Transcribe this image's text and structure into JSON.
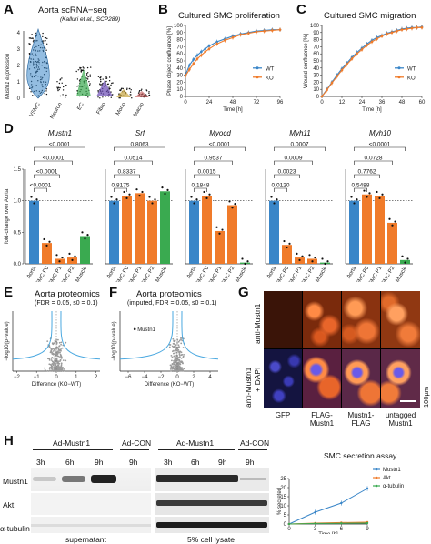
{
  "panelA": {
    "letter": "A",
    "title": "Aorta scRNA−seq",
    "subtitle": "(Kalluri et al., SCP289)",
    "ylabel": "Mustn1 expression",
    "yticks": [
      "4",
      "3",
      "2",
      "1",
      "0"
    ],
    "categories": [
      "VSMC",
      "Neuron",
      "EC",
      "Fibro",
      "Mono",
      "Macro"
    ]
  },
  "panelB": {
    "letter": "B",
    "title": "Cultured SMC proliferation",
    "ylabel": "Phase object confluence [%]",
    "xlabel": "Time [h]"
  },
  "panelC": {
    "letter": "C",
    "title": "Cultured SMC migration",
    "ylabel": "Wound confluence [%]",
    "xlabel": "Time [h]"
  },
  "panelD": {
    "letter": "D",
    "ylabel": "fold-change over Aorta",
    "groups": [
      {
        "gene": "Mustn1",
        "pvals": [
          "<0.0001",
          "<0.0001",
          "<0.0001",
          "<0.0001"
        ]
      },
      {
        "gene": "Srf",
        "pvals": [
          "0.8063",
          "0.0514",
          "0.8337",
          "0.8175"
        ]
      },
      {
        "gene": "Myocd",
        "pvals": [
          "<0.0001",
          "0.9537",
          "0.0015",
          "0.1848"
        ]
      },
      {
        "gene": "Myh11",
        "pvals": [
          "0.0007",
          "0.0009",
          "0.0023",
          "0.0120"
        ]
      },
      {
        "gene": "Myh10",
        "pvals": [
          "<0.0001",
          "0.0728",
          "0.7762",
          "0.5488"
        ]
      }
    ],
    "xcats": [
      "Aorta",
      "SMC P0",
      "SMC P1",
      "SMC P2",
      "Sk Muscle"
    ]
  },
  "panelE": {
    "letter": "E",
    "title": "Aorta proteomics",
    "subtitle": "(FDR = 0.05, s0 = 0.1)",
    "ylabel": "−log10(p−value)",
    "xlabel": "Difference (KO−WT)",
    "xticks": [
      "−2",
      "−1",
      "0",
      "1",
      "2"
    ]
  },
  "panelF": {
    "letter": "F",
    "title": "Aorta proteomics",
    "subtitle": "(imputed, FDR = 0.05, s0 = 0.1)",
    "ylabel": "−log10(p−value)",
    "xlabel": "Difference (KO−WT)",
    "xticks": [
      "−6",
      "−4",
      "−2",
      "0",
      "2",
      "4"
    ],
    "annotation": "Mustn1"
  },
  "panelG": {
    "letter": "G",
    "row1": "anti-Mustn1",
    "row2a": "anti-Mustn1",
    "row2b": "+ DAPI",
    "scalebar": "100µm",
    "cols": [
      "GFP",
      "FLAG-\nMustn1",
      "Mustn1-\nFLAG",
      "untagged\nMustn1"
    ]
  },
  "panelH": {
    "letter": "H",
    "leftGroupA": "Ad-Mustn1",
    "leftGroupB": "Ad-CON",
    "rightGroupA": "Ad-Mustn1",
    "rightGroupB": "Ad-CON",
    "times": [
      "3h",
      "6h",
      "9h",
      "9h"
    ],
    "rows": [
      "Mustn1",
      "Akt",
      "α-tubulin"
    ],
    "leftFooter": "supernatant",
    "rightFooter": "5% cell lysate",
    "assay": {
      "title": "SMC secretion assay",
      "ylabel": "% secreted",
      "xlabel": "Time [h]",
      "legend": [
        "Mustn1",
        "Akt",
        "α-tubulin"
      ]
    }
  },
  "chart_data": [
    {
      "type": "line",
      "title": "Cultured SMC proliferation",
      "xlabel": "Time [h]",
      "ylabel": "Phase object confluence [%]",
      "xlim": [
        0,
        96
      ],
      "ylim": [
        0,
        100
      ],
      "xticks": [
        0,
        24,
        48,
        72,
        96
      ],
      "yticks": [
        0,
        10,
        20,
        30,
        40,
        50,
        60,
        70,
        80,
        90,
        100
      ],
      "colors": {
        "WT": "#3a86c8",
        "KO": "#f07b2a"
      },
      "series": [
        {
          "name": "WT",
          "x": [
            0,
            4,
            8,
            12,
            16,
            20,
            24,
            32,
            40,
            48,
            56,
            64,
            72,
            80,
            88,
            96
          ],
          "values": [
            30,
            44,
            52,
            58,
            63,
            67,
            71,
            77,
            81,
            85,
            88,
            90,
            92,
            93,
            94,
            94
          ]
        },
        {
          "name": "KO",
          "x": [
            0,
            4,
            8,
            12,
            16,
            20,
            24,
            32,
            40,
            48,
            56,
            64,
            72,
            80,
            88,
            96
          ],
          "values": [
            29,
            38,
            46,
            53,
            58,
            63,
            67,
            74,
            79,
            83,
            87,
            89,
            91,
            92,
            93,
            94
          ]
        }
      ]
    },
    {
      "type": "line",
      "title": "Cultured SMC migration",
      "xlabel": "Time [h]",
      "ylabel": "Wound confluence [%]",
      "xlim": [
        0,
        60
      ],
      "ylim": [
        0,
        100
      ],
      "xticks": [
        0,
        12,
        24,
        36,
        48,
        60
      ],
      "yticks": [
        0,
        10,
        20,
        30,
        40,
        50,
        60,
        70,
        80,
        90,
        100
      ],
      "colors": {
        "WT": "#3a86c8",
        "KO": "#f07b2a"
      },
      "series": [
        {
          "name": "WT",
          "x": [
            0,
            3,
            6,
            9,
            12,
            15,
            18,
            21,
            24,
            27,
            30,
            33,
            36,
            39,
            42,
            45,
            48,
            51,
            54,
            57,
            60
          ],
          "values": [
            0,
            10,
            20,
            30,
            39,
            47,
            55,
            62,
            68,
            74,
            79,
            83,
            86,
            89,
            91,
            93,
            95,
            96,
            97,
            97,
            98
          ]
        },
        {
          "name": "KO",
          "x": [
            0,
            3,
            6,
            9,
            12,
            15,
            18,
            21,
            24,
            27,
            30,
            33,
            36,
            39,
            42,
            45,
            48,
            51,
            54,
            57,
            60
          ],
          "values": [
            0,
            9,
            19,
            28,
            37,
            45,
            53,
            60,
            66,
            72,
            77,
            81,
            85,
            88,
            90,
            92,
            94,
            95,
            96,
            97,
            97
          ]
        }
      ]
    },
    {
      "type": "bar",
      "title": "",
      "ylabel": "fold-change over Aorta",
      "ylim": [
        0,
        1.5
      ],
      "categories": [
        "Aorta",
        "SMC P0",
        "SMC P1",
        "SMC P2",
        "Sk Muscle"
      ],
      "colors": [
        "#3a86c8",
        "#f07b2a",
        "#f07b2a",
        "#f07b2a",
        "#3aaa50"
      ],
      "series": [
        {
          "name": "Mustn1",
          "values": [
            1.0,
            0.33,
            0.08,
            0.1,
            0.44
          ]
        },
        {
          "name": "Srf",
          "values": [
            1.0,
            1.08,
            1.12,
            1.0,
            1.15
          ]
        },
        {
          "name": "Myocd",
          "values": [
            1.0,
            1.08,
            0.52,
            0.93,
            0.02
          ]
        },
        {
          "name": "Myh11",
          "values": [
            1.0,
            0.3,
            0.1,
            0.08,
            0.02
          ]
        },
        {
          "name": "Myh10",
          "values": [
            1.0,
            1.1,
            1.08,
            0.65,
            0.06
          ]
        }
      ]
    },
    {
      "type": "line",
      "title": "SMC secretion assay",
      "xlabel": "Time [h]",
      "ylabel": "% secreted",
      "xlim": [
        0,
        9
      ],
      "ylim": [
        0,
        25
      ],
      "xticks": [
        0,
        3,
        6,
        9
      ],
      "yticks": [
        0,
        5,
        10,
        15,
        20,
        25
      ],
      "colors": {
        "Mustn1": "#3a86c8",
        "Akt": "#f07b2a",
        "α-tubulin": "#3aaa50"
      },
      "series": [
        {
          "name": "Mustn1",
          "x": [
            0,
            3,
            6,
            9
          ],
          "values": [
            0,
            6.5,
            11.5,
            19.5
          ]
        },
        {
          "name": "Akt",
          "x": [
            0,
            3,
            6,
            9
          ],
          "values": [
            0,
            0.5,
            0.8,
            1.0
          ]
        },
        {
          "name": "α-tubulin",
          "x": [
            0,
            3,
            6,
            9
          ],
          "values": [
            0,
            0.3,
            0.4,
            0.5
          ]
        }
      ]
    }
  ]
}
